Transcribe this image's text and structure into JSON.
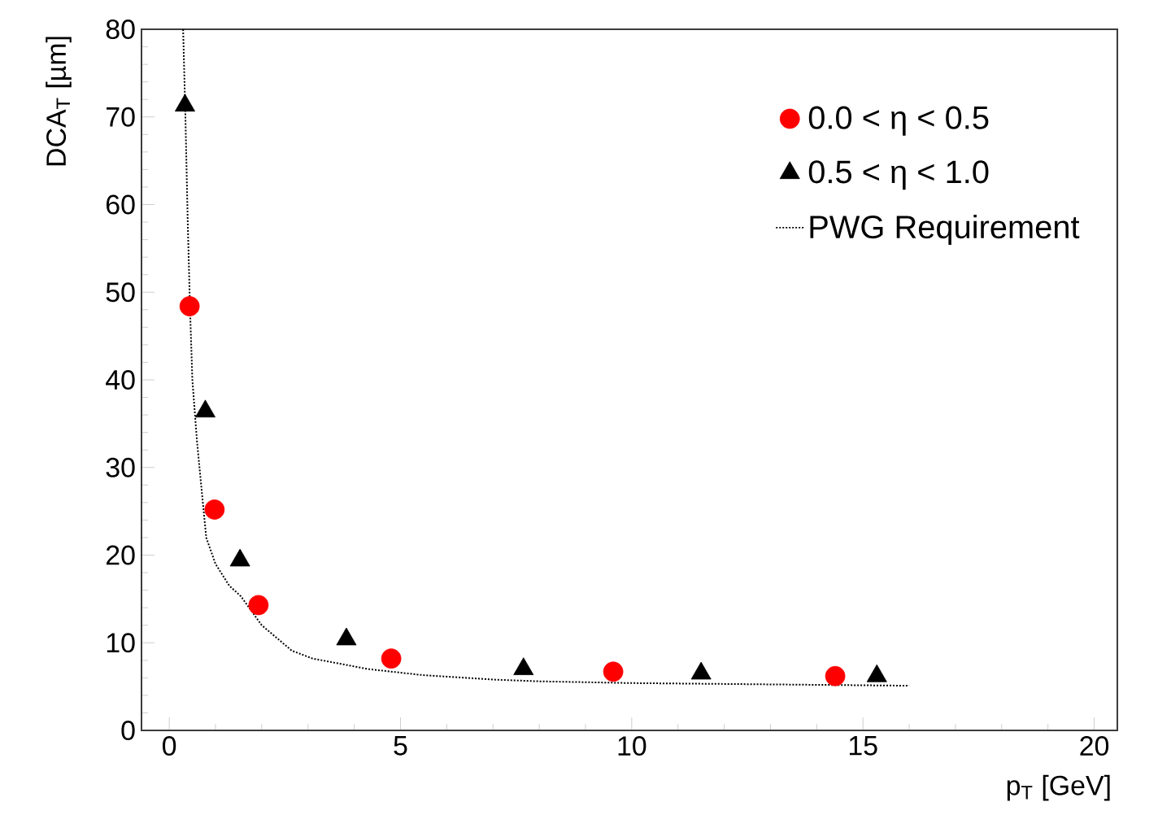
{
  "chart_data": {
    "type": "scatter",
    "xlabel": "p$_{T}$ [GeV]",
    "ylabel": "DCA$_{T}$ [µm]",
    "xlim": [
      -0.6,
      20.5
    ],
    "xticks": [
      0,
      5,
      10,
      15,
      20
    ],
    "ylim": [
      0,
      80
    ],
    "yticks": [
      0,
      10,
      20,
      30,
      40,
      50,
      60,
      70,
      80
    ],
    "grid": false,
    "legend": "top right",
    "series": [
      {
        "name": "0.0 < η < 0.5",
        "color": "#ff0000",
        "marker": "circle",
        "x": [
          0.44,
          0.98,
          1.93,
          4.8,
          9.6,
          14.4
        ],
        "values": [
          48.4,
          25.2,
          14.3,
          8.2,
          6.7,
          6.2
        ]
      },
      {
        "name": "0.5 < η < 1.0",
        "color": "#000000",
        "marker": "triangle",
        "x": [
          0.34,
          0.78,
          1.53,
          3.83,
          7.66,
          11.5,
          15.3
        ],
        "values": [
          71.3,
          36.4,
          19.4,
          10.4,
          7.0,
          6.5,
          6.2
        ]
      },
      {
        "name": "PWG Requirement",
        "type": "line",
        "color": "#000000",
        "marker": "none",
        "line_style": "dotted",
        "x": [
          0.3,
          0.35,
          0.4,
          0.45,
          0.5,
          0.6,
          0.69,
          0.8,
          1.0,
          1.3,
          1.55,
          2.0,
          2.65,
          3.1,
          4.3,
          5.5,
          7,
          8,
          10,
          12,
          14,
          16
        ],
        "values": [
          80,
          70,
          58,
          48,
          40,
          33,
          28,
          22,
          19,
          16.5,
          15.3,
          12,
          9.1,
          8.2,
          7.0,
          6.3,
          5.8,
          5.6,
          5.4,
          5.3,
          5.2,
          5.1
        ]
      }
    ]
  }
}
